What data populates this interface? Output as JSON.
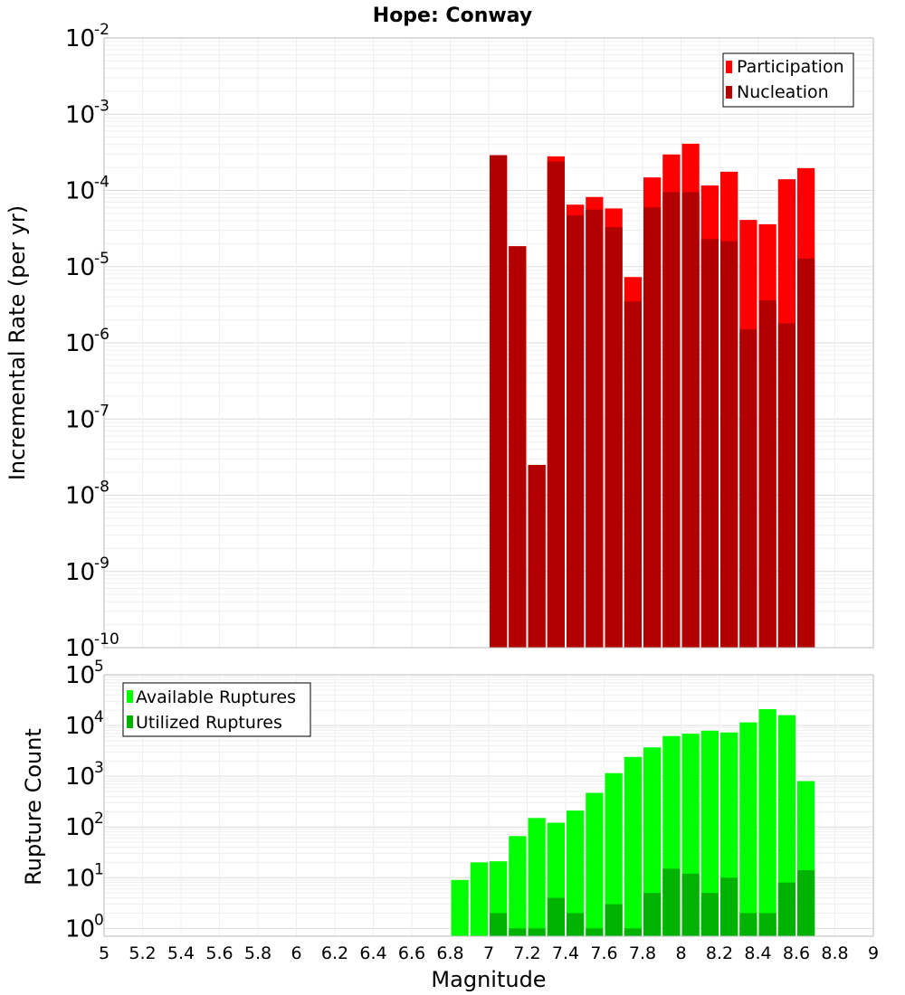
{
  "chart_data": [
    {
      "type": "bar",
      "title": "Hope: Conway",
      "xlabel": "",
      "ylabel": "Incremental Rate (per yr)",
      "xlim": [
        5,
        9
      ],
      "ylim": [
        1e-10,
        0.01
      ],
      "yscale": "log",
      "ytick_exponents": [
        "-10",
        "-9",
        "-8",
        "-7",
        "-6",
        "-5",
        "-4",
        "-3",
        "-2"
      ],
      "grid": true,
      "legend_position": "top-right",
      "x": [
        7.05,
        7.15,
        7.25,
        7.35,
        7.45,
        7.55,
        7.65,
        7.75,
        7.85,
        7.95,
        8.05,
        8.15,
        8.25,
        8.35,
        8.45,
        8.55,
        8.65
      ],
      "series": [
        {
          "name": "Participation",
          "color": "#ff0000",
          "values": [
            0.00029,
            1.85e-05,
            2.5e-08,
            0.00028,
            6.5e-05,
            8.2e-05,
            5.8e-05,
            7.3e-06,
            0.000148,
            0.000296,
            0.00041,
            0.000116,
            0.000176,
            4.1e-05,
            3.6e-05,
            0.00014,
            0.000196
          ]
        },
        {
          "name": "Nucleation",
          "color": "#b20000",
          "values": [
            0.00029,
            1.85e-05,
            2.5e-08,
            0.00024,
            4.7e-05,
            5.6e-05,
            3.3e-05,
            3.5e-06,
            6e-05,
            9.5e-05,
            9.5e-05,
            2.3e-05,
            2.15e-05,
            1.5e-06,
            3.6e-06,
            1.8e-06,
            1.28e-05
          ]
        }
      ]
    },
    {
      "type": "bar",
      "title": "",
      "xlabel": "Magnitude",
      "ylabel": "Rupture Count",
      "xlim": [
        5,
        9
      ],
      "ylim": [
        0.7,
        100000.0
      ],
      "yscale": "log",
      "ytick_exponents": [
        "0",
        "1",
        "2",
        "3",
        "4",
        "5"
      ],
      "xticks": [
        "5",
        "5.2",
        "5.4",
        "5.6",
        "5.8",
        "6",
        "6.2",
        "6.4",
        "6.6",
        "6.8",
        "7",
        "7.2",
        "7.4",
        "7.6",
        "7.8",
        "8",
        "8.2",
        "8.4",
        "8.6",
        "8.8",
        "9"
      ],
      "grid": true,
      "legend_position": "top-left",
      "x": [
        6.85,
        6.95,
        7.05,
        7.15,
        7.25,
        7.35,
        7.45,
        7.55,
        7.65,
        7.75,
        7.85,
        7.95,
        8.05,
        8.15,
        8.25,
        8.35,
        8.45,
        8.55,
        8.65
      ],
      "series": [
        {
          "name": "Available Ruptures",
          "color": "#00ff00",
          "values": [
            9,
            20,
            21,
            66,
            150,
            121,
            210,
            470,
            1150,
            2400,
            3700,
            6200,
            6900,
            7900,
            7300,
            11500,
            21000,
            16000,
            800
          ]
        },
        {
          "name": "Utilized Ruptures",
          "color": "#00b200",
          "values": [
            0,
            0,
            2,
            1,
            1,
            4,
            2,
            1,
            3,
            1,
            5,
            15,
            12,
            5,
            10,
            2,
            2,
            8,
            14
          ]
        }
      ]
    }
  ]
}
